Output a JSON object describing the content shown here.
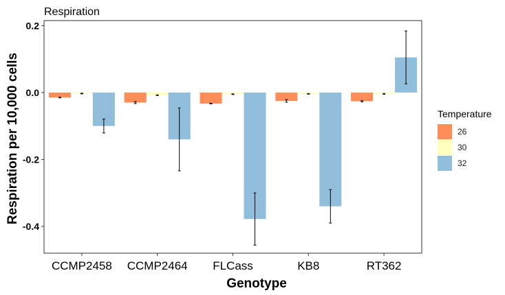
{
  "chart_data": {
    "type": "bar",
    "title": "Respiration",
    "xlabel": "Genotype",
    "ylabel": "Respiration per 10,000 cells",
    "categories": [
      "CCMP2458",
      "CCMP2464",
      "FLCass",
      "KB8",
      "RT362"
    ],
    "ylim": [
      -0.48,
      0.215
    ],
    "yticks": [
      0.2,
      0.0,
      -0.2,
      -0.4
    ],
    "ytick_labels": [
      "0.2",
      "0.0",
      "-0.2",
      "-0.4"
    ],
    "grid": false,
    "legend": {
      "title": "Temperature",
      "position": "right"
    },
    "series": [
      {
        "name": "26",
        "color": "#FC8D59",
        "values": [
          -0.015,
          -0.03,
          -0.033,
          -0.025,
          -0.026
        ],
        "errors": [
          0.001,
          0.003,
          0.001,
          0.004,
          0.002
        ]
      },
      {
        "name": "30",
        "color": "#FFFFBF",
        "values": [
          -0.003,
          -0.008,
          -0.005,
          -0.004,
          -0.004
        ],
        "errors": [
          0.001,
          0.001,
          0.001,
          0.001,
          0.001
        ]
      },
      {
        "name": "32",
        "color": "#91BFDB",
        "values": [
          -0.1,
          -0.14,
          -0.378,
          -0.34,
          0.105
        ],
        "errors": [
          0.021,
          0.094,
          0.078,
          0.05,
          0.079
        ]
      }
    ]
  }
}
